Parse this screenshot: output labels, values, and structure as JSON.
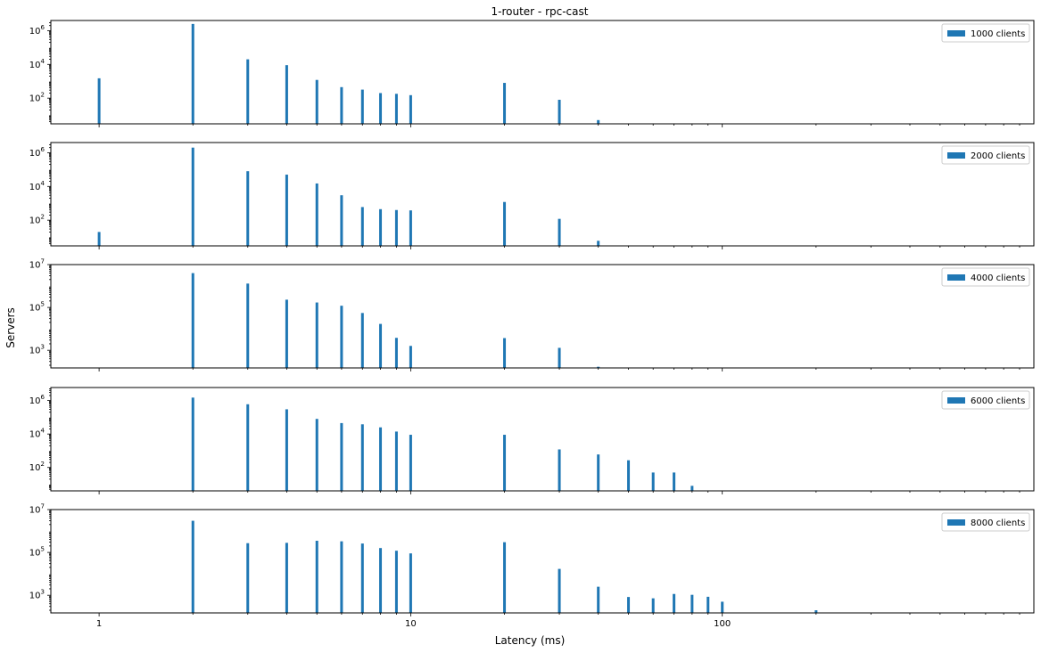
{
  "chart_data": {
    "type": "bar",
    "title": "1-router - rpc-cast",
    "xlabel": "Latency (ms)",
    "ylabel": "Servers",
    "xscale": "log",
    "yscale": "log",
    "xlim": [
      0.7,
      1000
    ],
    "xticks": [
      1,
      10,
      100
    ],
    "xticklabels": [
      "1",
      "10",
      "100"
    ],
    "sharex": true,
    "legend_loc": "upper right",
    "bar_color": "#1f77b4",
    "panels": [
      {
        "series": [
          {
            "name": "1000 clients",
            "x": [
              1,
              2,
              3,
              4,
              5,
              6,
              7,
              8,
              9,
              10,
              20,
              30,
              40
            ],
            "values": [
              1500,
              2500000,
              20000,
              9000,
              1200,
              450,
              320,
              200,
              180,
              150,
              800,
              80,
              5
            ]
          }
        ],
        "ylim": [
          3,
          4000000
        ],
        "yticks": [
          100,
          10000,
          1000000
        ],
        "yticklabels": [
          {
            "base": "10",
            "exp": "2"
          },
          {
            "base": "10",
            "exp": "4"
          },
          {
            "base": "10",
            "exp": "6"
          }
        ]
      },
      {
        "series": [
          {
            "name": "2000 clients",
            "x": [
              1,
              2,
              3,
              4,
              5,
              6,
              7,
              8,
              9,
              10,
              20,
              30,
              40
            ],
            "values": [
              20,
              2000000,
              80000,
              50000,
              15000,
              3000,
              600,
              450,
              400,
              380,
              1200,
              120,
              6
            ]
          }
        ],
        "ylim": [
          3,
          4000000
        ],
        "yticks": [
          100,
          10000,
          1000000
        ],
        "yticklabels": [
          {
            "base": "10",
            "exp": "2"
          },
          {
            "base": "10",
            "exp": "4"
          },
          {
            "base": "10",
            "exp": "6"
          }
        ]
      },
      {
        "series": [
          {
            "name": "4000 clients",
            "x": [
              2,
              3,
              4,
              5,
              6,
              7,
              8,
              9,
              10,
              20,
              30,
              40
            ],
            "values": [
              4000000,
              1300000,
              230000,
              170000,
              120000,
              55000,
              17000,
              3800,
              1600,
              3700,
              1300,
              170
            ]
          }
        ],
        "ylim": [
          150,
          10000000
        ],
        "yticks": [
          1000,
          100000,
          10000000
        ],
        "yticklabels": [
          {
            "base": "10",
            "exp": "3"
          },
          {
            "base": "10",
            "exp": "5"
          },
          {
            "base": "10",
            "exp": "7"
          }
        ]
      },
      {
        "series": [
          {
            "name": "6000 clients",
            "x": [
              2,
              3,
              4,
              5,
              6,
              7,
              8,
              9,
              10,
              20,
              30,
              40,
              50,
              60,
              70,
              80
            ],
            "values": [
              1500000,
              600000,
              300000,
              80000,
              45000,
              38000,
              25000,
              14000,
              9000,
              9000,
              1200,
              600,
              270,
              50,
              50,
              8
            ]
          }
        ],
        "ylim": [
          4,
          6000000
        ],
        "yticks": [
          100,
          10000,
          1000000
        ],
        "yticklabels": [
          {
            "base": "10",
            "exp": "2"
          },
          {
            "base": "10",
            "exp": "4"
          },
          {
            "base": "10",
            "exp": "6"
          }
        ]
      },
      {
        "series": [
          {
            "name": "8000 clients",
            "x": [
              2,
              3,
              4,
              5,
              6,
              7,
              8,
              9,
              10,
              20,
              30,
              40,
              50,
              60,
              70,
              80,
              90,
              100,
              200
            ],
            "values": [
              3000000,
              270000,
              280000,
              350000,
              330000,
              260000,
              160000,
              120000,
              90000,
              300000,
              17000,
              2500,
              830,
              720,
              1150,
              1050,
              850,
              500,
              200
            ]
          }
        ],
        "ylim": [
          150,
          10000000
        ],
        "yticks": [
          1000,
          100000,
          10000000
        ],
        "yticklabels": [
          {
            "base": "10",
            "exp": "3"
          },
          {
            "base": "10",
            "exp": "5"
          },
          {
            "base": "10",
            "exp": "7"
          }
        ]
      }
    ]
  }
}
